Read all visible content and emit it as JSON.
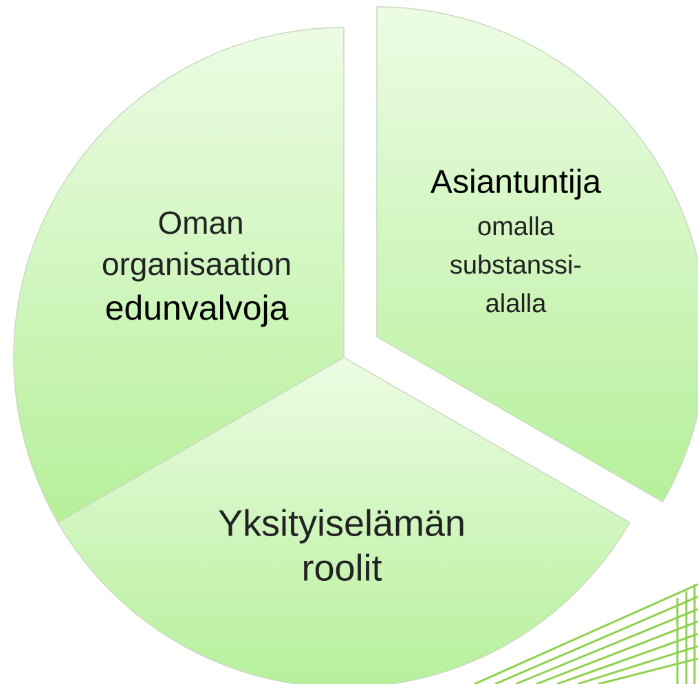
{
  "segments": [
    {
      "lines": [
        "Oman",
        "organisaation",
        "edunvalvoja"
      ]
    },
    {
      "lines": [
        "Asiantuntija",
        "omalla",
        "substanssi-",
        "alalla"
      ]
    },
    {
      "lines": [
        "Yksityiselämän",
        "roolit"
      ]
    }
  ]
}
